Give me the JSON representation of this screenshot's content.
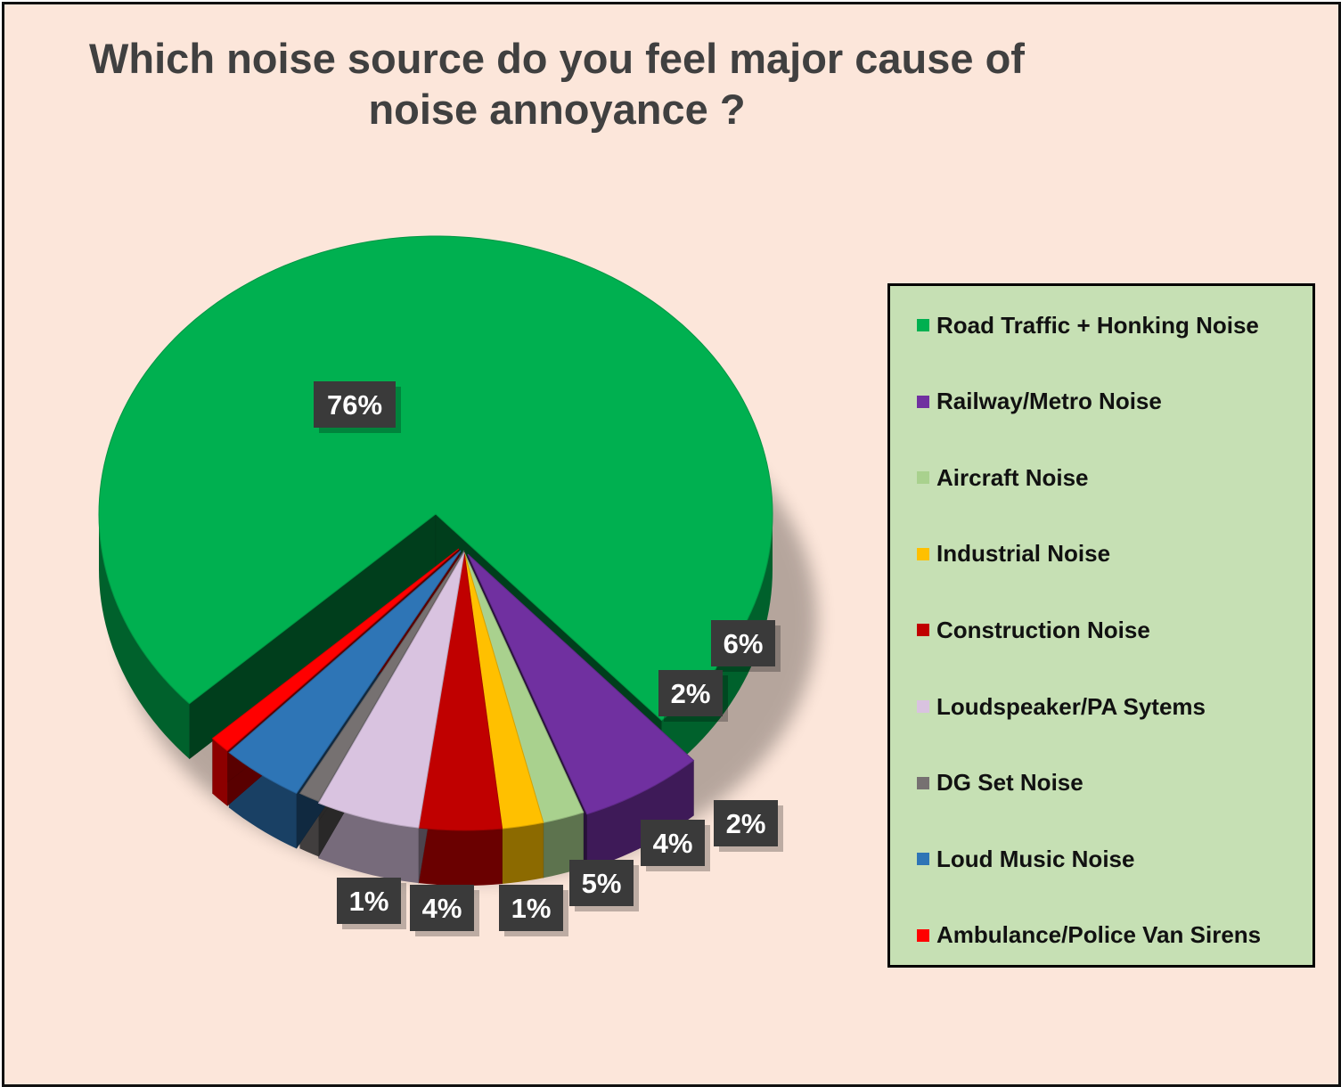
{
  "chart_data": {
    "type": "pie",
    "title": "Which noise source do you feel major cause of noise annoyance ?",
    "legend_position": "right",
    "categories": [
      "Road Traffic + Honking Noise",
      "Railway/Metro Noise",
      "Aircraft Noise",
      "Industrial Noise",
      "Construction Noise",
      "Loudspeaker/PA Sytems",
      "DG Set Noise",
      "Loud Music Noise",
      "Ambulance/Police Van Sirens"
    ],
    "values": [
      76,
      6,
      2,
      2,
      4,
      5,
      1,
      4,
      1
    ],
    "data_labels": [
      "76%",
      "6%",
      "2%",
      "2%",
      "4%",
      "5%",
      "1%",
      "4%",
      "1%"
    ],
    "colors": [
      "#00b050",
      "#7030a0",
      "#a9d18e",
      "#ffc000",
      "#c00000",
      "#d9c3e0",
      "#767171",
      "#2e75b6",
      "#ff0000"
    ]
  }
}
